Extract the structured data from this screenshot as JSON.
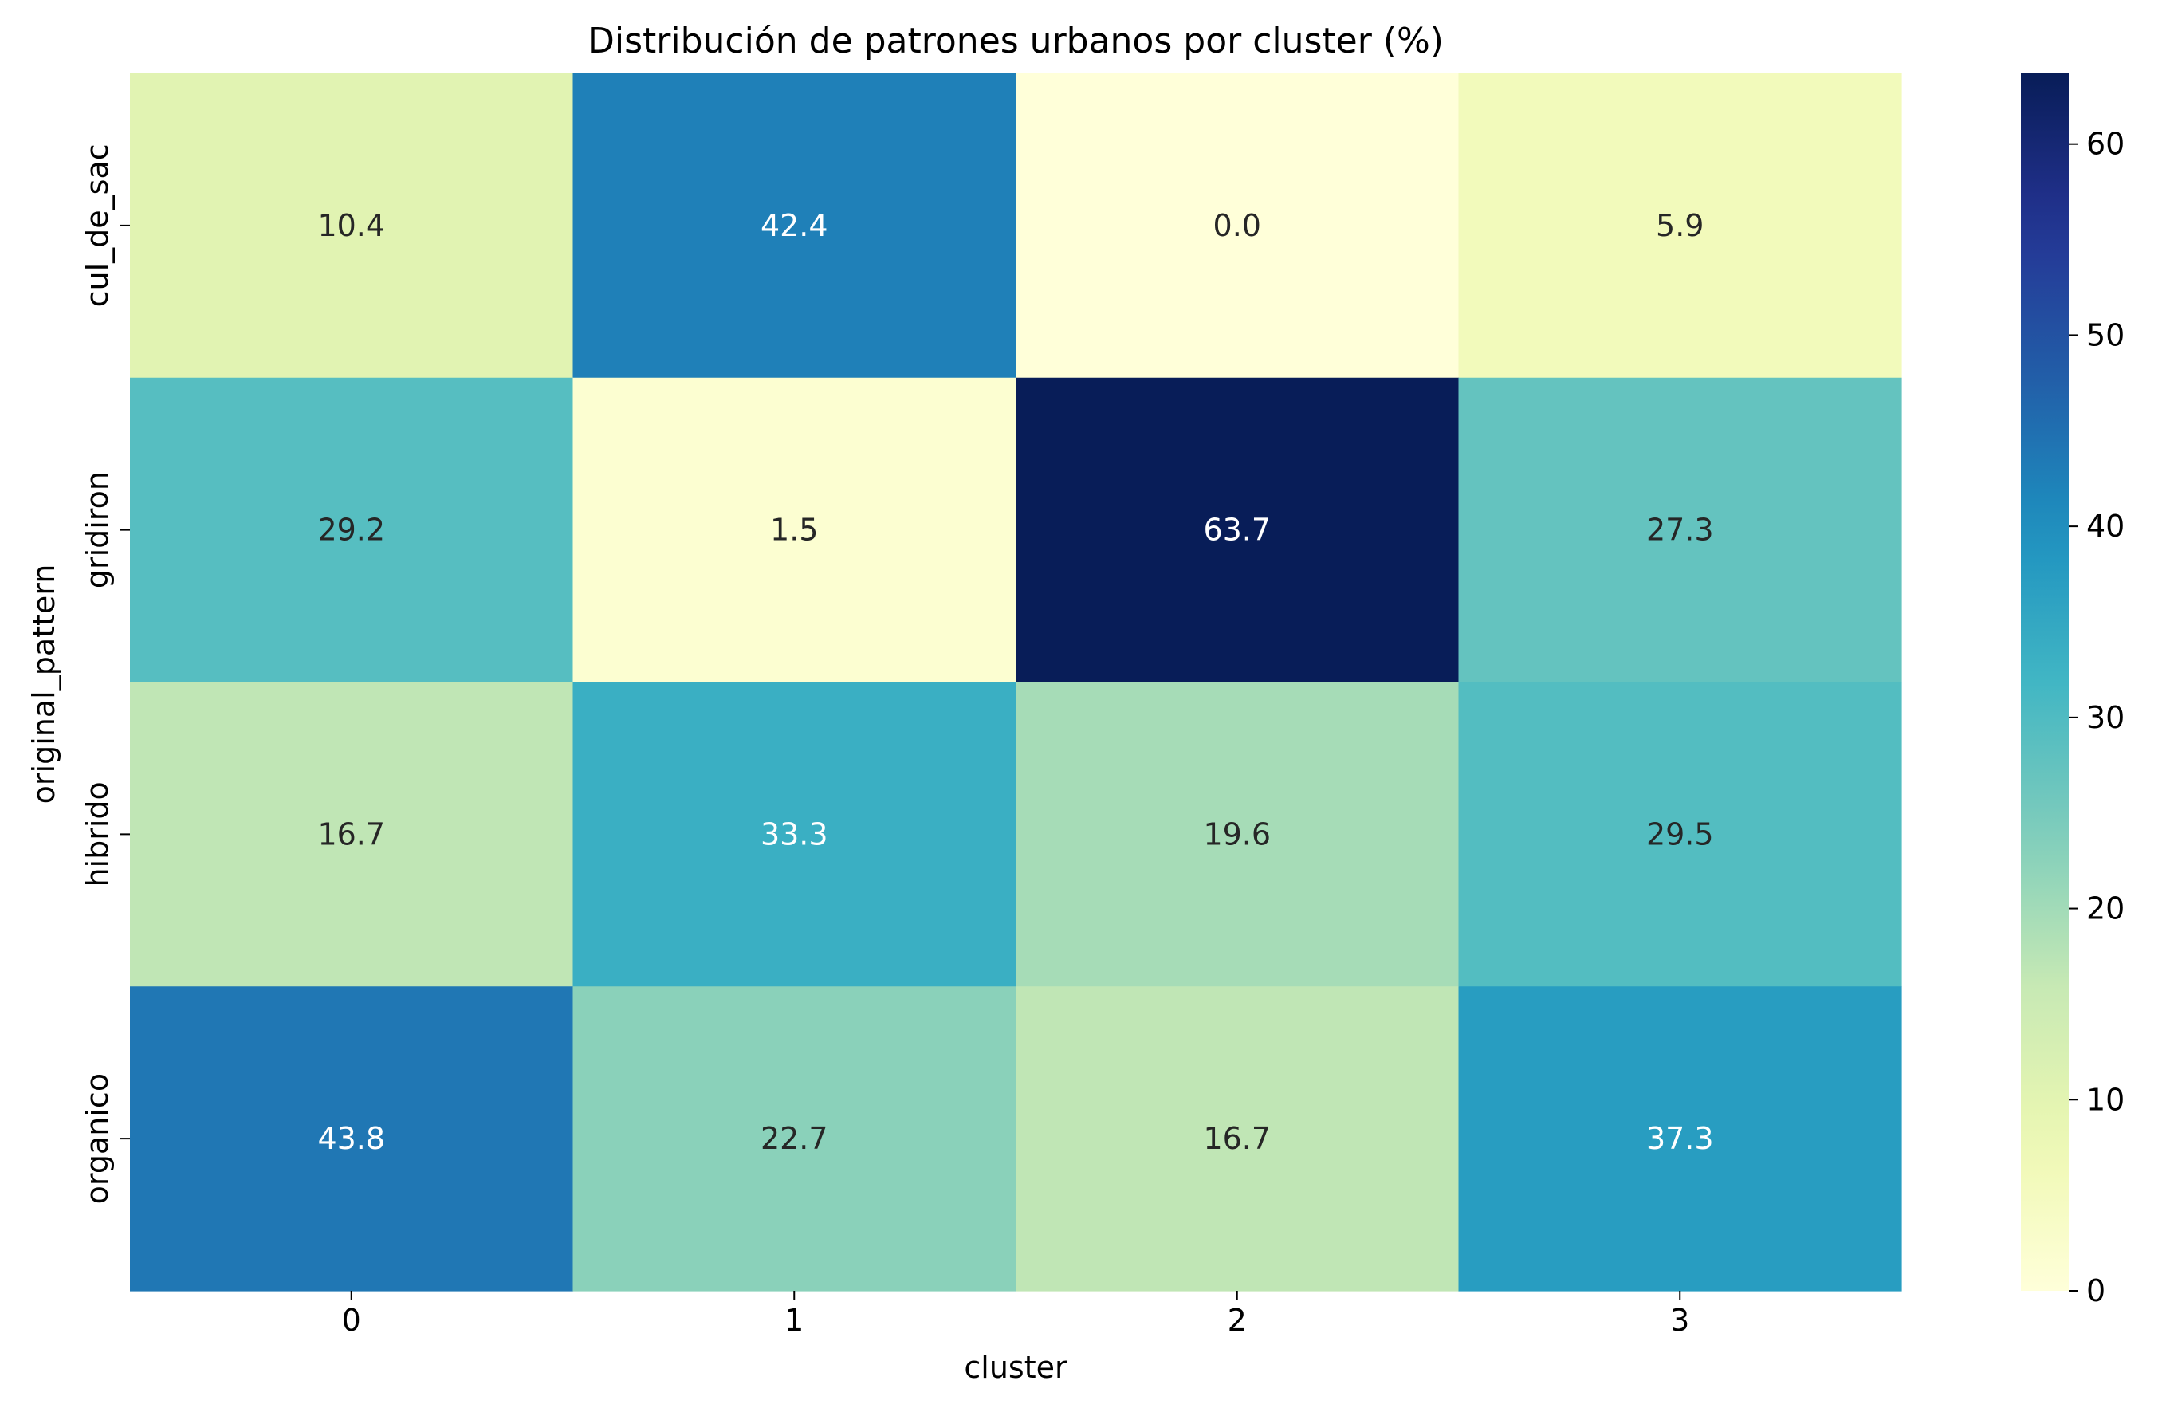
{
  "chart_data": {
    "type": "heatmap",
    "title": "Distribución de patrones urbanos por cluster (%)",
    "xlabel": "cluster",
    "ylabel": "original_pattern",
    "x_categories": [
      "0",
      "1",
      "2",
      "3"
    ],
    "y_categories": [
      "cul_de_sac",
      "gridiron",
      "hibrido",
      "organico"
    ],
    "values": [
      [
        10.4,
        42.4,
        0.0,
        5.9
      ],
      [
        29.2,
        1.5,
        63.7,
        27.3
      ],
      [
        16.7,
        33.3,
        19.6,
        29.5
      ],
      [
        43.8,
        22.7,
        16.7,
        37.3
      ]
    ],
    "value_format": "0.0",
    "colormap": "YlGnBu",
    "vmin": 0,
    "vmax": 63.7,
    "colorbar_ticks": [
      0,
      10,
      20,
      30,
      40,
      50,
      60
    ],
    "annotation_colors": {
      "dark": "#262626",
      "light": "#ffffff"
    }
  }
}
